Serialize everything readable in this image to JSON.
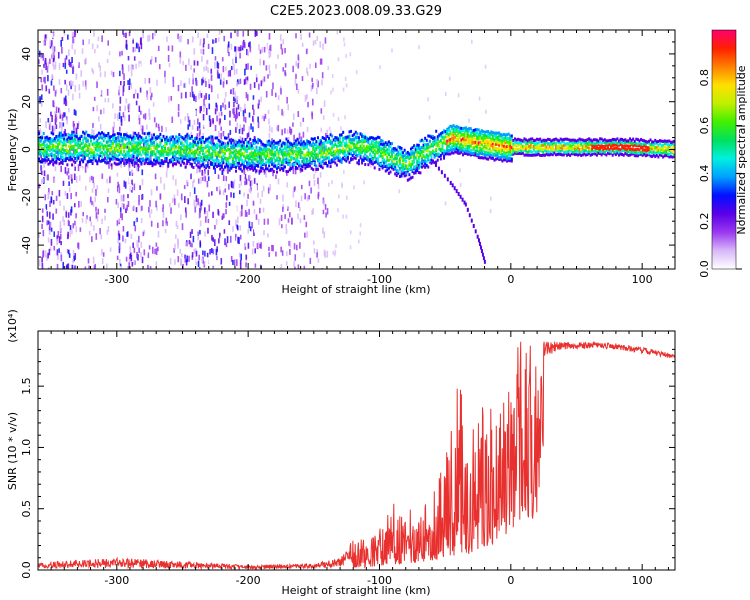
{
  "title": "C2E5.2023.008.09.33.G29",
  "chart_data": [
    {
      "type": "heatmap",
      "xlabel": "Height of straight line (km)",
      "ylabel": "Frequency (Hz)",
      "xlim": [
        -360,
        125
      ],
      "ylim": [
        -50,
        50
      ],
      "xticks": [
        -300,
        -200,
        -100,
        0,
        100
      ],
      "yticks": [
        -40,
        -20,
        0,
        20,
        40
      ],
      "colorbar": {
        "label": "Normalized spectral amplitude",
        "range": [
          0,
          1
        ],
        "ticks": [
          0.0,
          0.2,
          0.4,
          0.6,
          0.8
        ],
        "tick_labels": [
          "0.0",
          "0.2",
          "0.4",
          "0.6",
          "0.8"
        ],
        "colors": [
          "#ffffff",
          "#d8b8f8",
          "#9a38f0",
          "#5a00e8",
          "#0010ff",
          "#00a0ff",
          "#00f0e0",
          "#00e060",
          "#40f000",
          "#c0f000",
          "#ffe000",
          "#ff8000",
          "#ff2000",
          "#ff0070"
        ]
      },
      "ridge": [
        {
          "x": -360,
          "y": 1
        },
        {
          "x": -300,
          "y": 1
        },
        {
          "x": -250,
          "y": 0
        },
        {
          "x": -205,
          "y": -2
        },
        {
          "x": -175,
          "y": -2
        },
        {
          "x": -145,
          "y": -1
        },
        {
          "x": -120,
          "y": 2
        },
        {
          "x": -100,
          "y": -1
        },
        {
          "x": -80,
          "y": -6
        },
        {
          "x": -60,
          "y": 1
        },
        {
          "x": -45,
          "y": 5
        },
        {
          "x": -25,
          "y": 3
        },
        {
          "x": 0,
          "y": 1
        },
        {
          "x": 40,
          "y": 1
        },
        {
          "x": 90,
          "y": 1
        },
        {
          "x": 125,
          "y": 0
        }
      ],
      "secondary_track": [
        {
          "x": -60,
          "y": -5
        },
        {
          "x": -45,
          "y": -15
        },
        {
          "x": -35,
          "y": -23
        },
        {
          "x": -25,
          "y": -38
        },
        {
          "x": -20,
          "y": -48
        }
      ]
    },
    {
      "type": "line",
      "xlabel": "Height of straight line (km)",
      "ylabel": "SNR (10 * v/v)",
      "y_multiplier": "(x10⁴)",
      "xlim": [
        -360,
        125
      ],
      "ylim": [
        0,
        1.95
      ],
      "xticks": [
        -300,
        -200,
        -100,
        0,
        100
      ],
      "yticks": [
        0.0,
        0.5,
        1.0,
        1.5
      ],
      "ytick_labels": [
        "0.0",
        "0.5",
        "1.0",
        "1.5"
      ],
      "line_color": "#e8302e",
      "envelope_x": [
        -360,
        -300,
        -200,
        -150,
        -130,
        -120,
        -110,
        -100,
        -90,
        -80,
        -70,
        -60,
        -50,
        -40,
        -30,
        -20,
        -10,
        0,
        5,
        10,
        20,
        30,
        40,
        60,
        80,
        100,
        125
      ],
      "envelope_base": [
        0.03,
        0.03,
        0.02,
        0.03,
        0.04,
        0.08,
        0.1,
        0.12,
        0.18,
        0.22,
        0.25,
        0.3,
        0.4,
        0.45,
        0.55,
        0.7,
        0.95,
        1.3,
        1.55,
        1.6,
        1.7,
        1.78,
        1.82,
        1.83,
        1.82,
        1.79,
        1.74
      ],
      "envelope_peak": [
        0.06,
        0.1,
        0.04,
        0.05,
        0.1,
        0.28,
        0.25,
        0.35,
        0.55,
        0.5,
        0.48,
        0.7,
        0.9,
        1.55,
        1.2,
        1.35,
        1.3,
        1.6,
        1.95,
        1.85,
        1.86,
        1.87,
        1.86,
        1.86,
        1.85,
        1.82,
        1.76
      ]
    }
  ]
}
